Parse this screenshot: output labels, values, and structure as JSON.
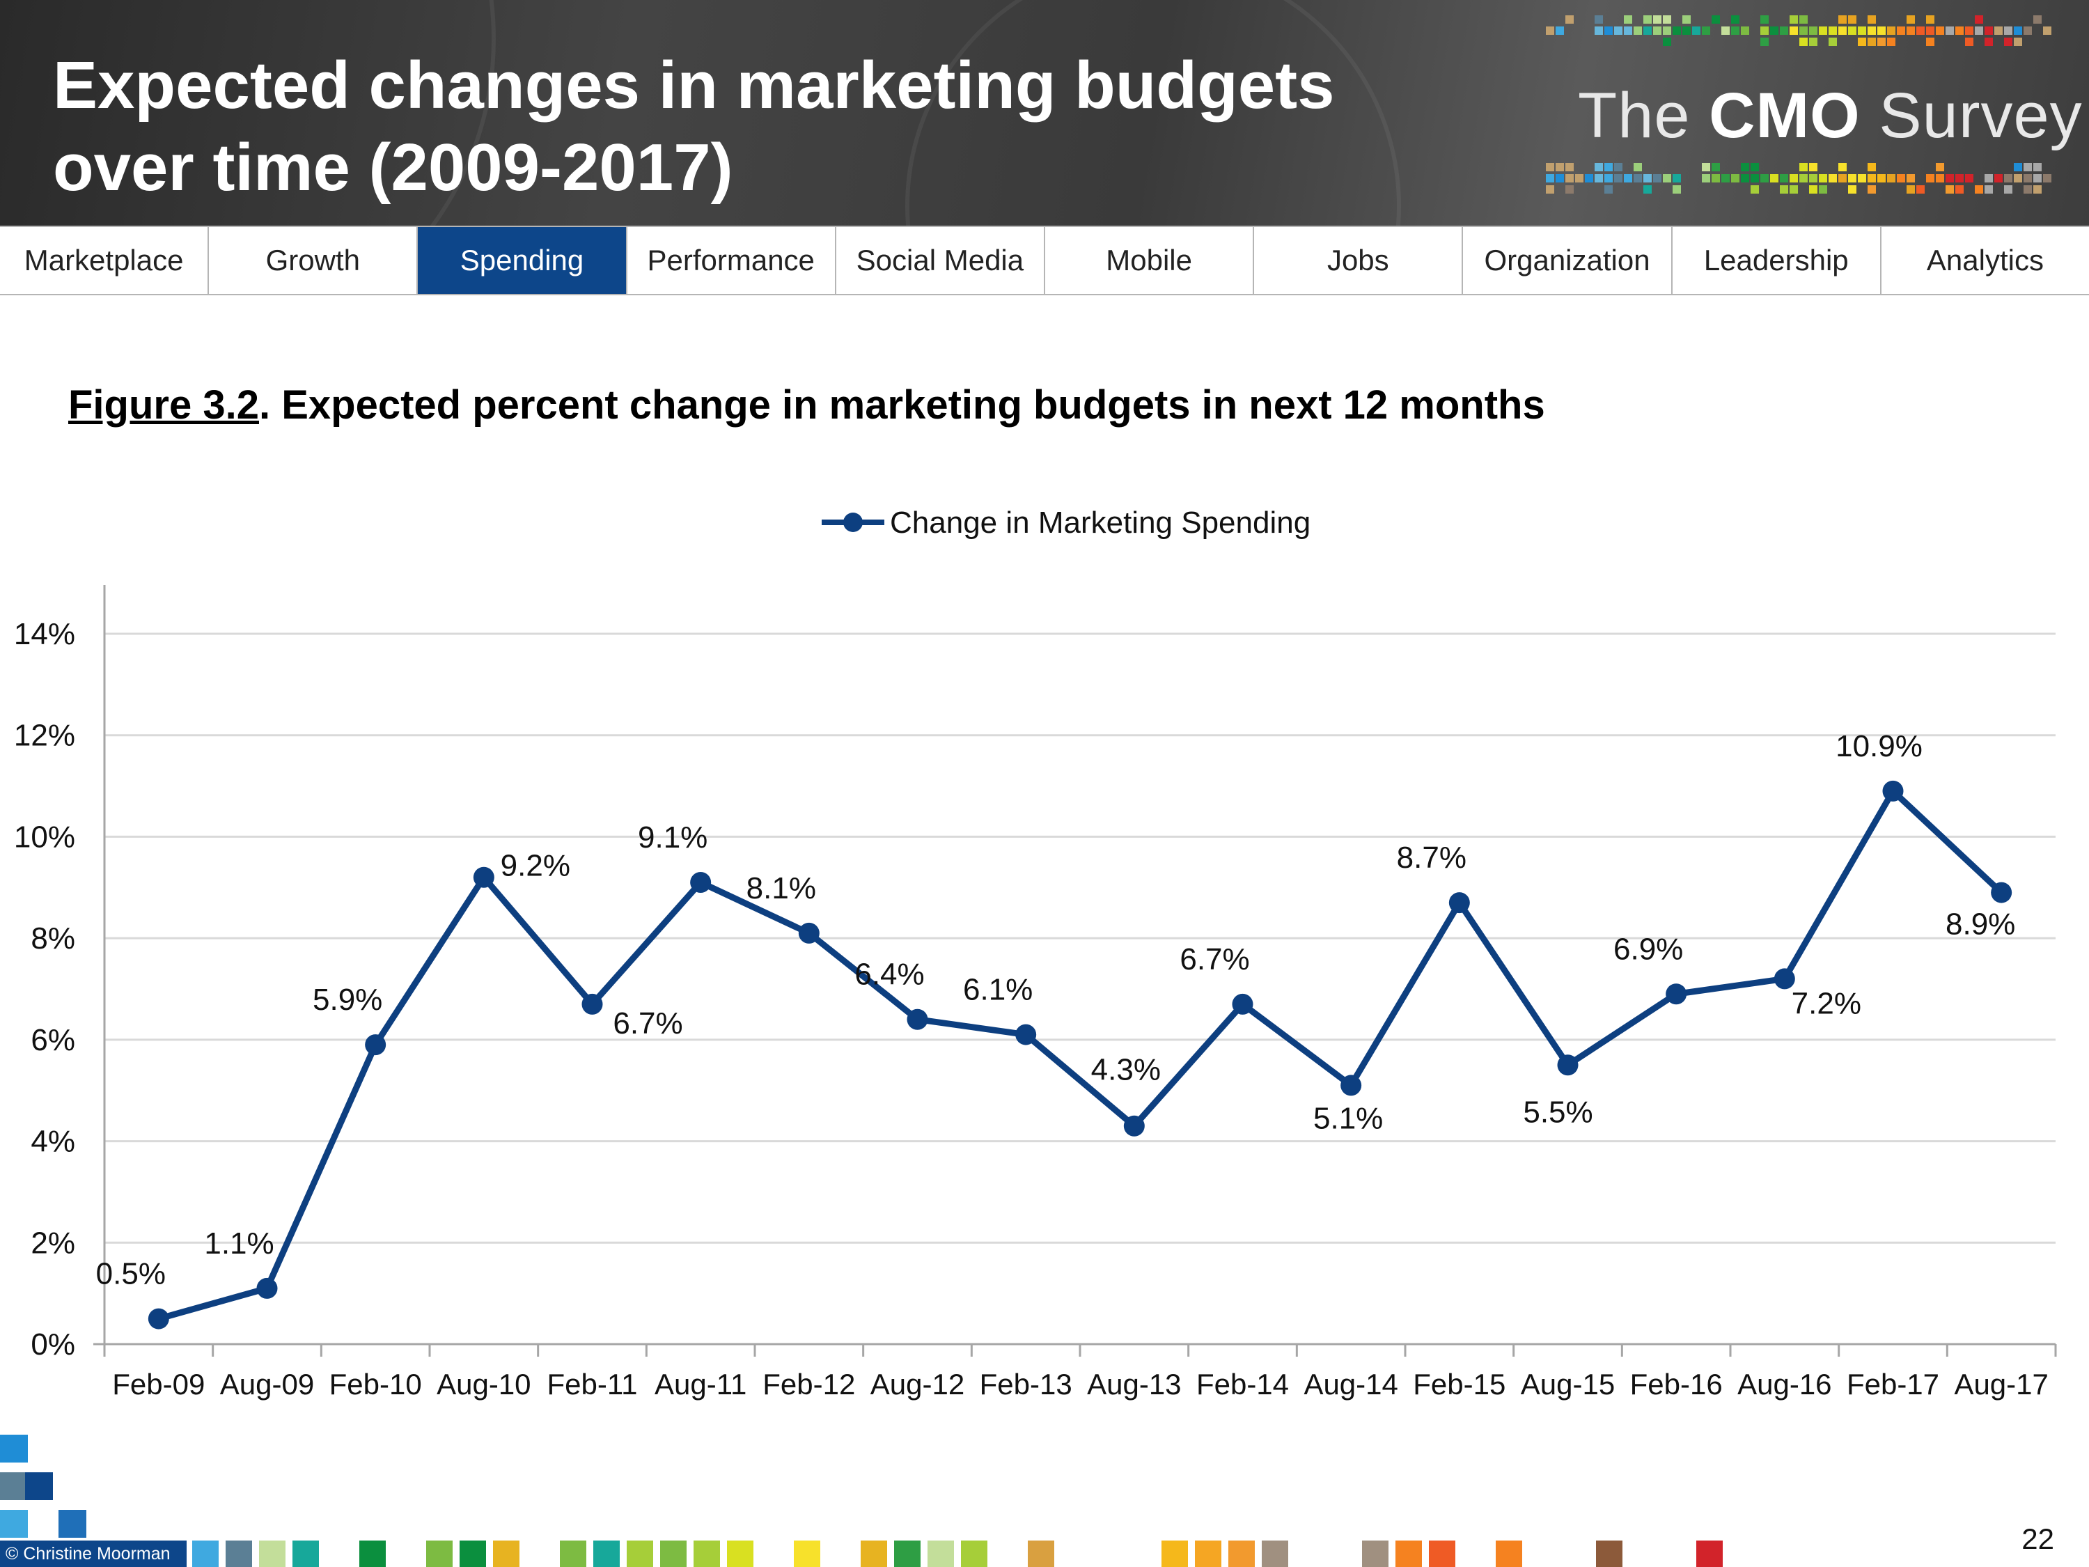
{
  "header": {
    "title_lines": [
      "Expected changes in marketing budgets",
      "over time (2009-2017)"
    ],
    "logo": {
      "prefix": "The ",
      "brand": "CMO",
      "suffix": " Survey"
    }
  },
  "nav": {
    "tabs": [
      {
        "label": "Marketplace"
      },
      {
        "label": "Growth"
      },
      {
        "label": "Spending",
        "active": true
      },
      {
        "label": "Performance"
      },
      {
        "label": "Social Media"
      },
      {
        "label": "Mobile"
      },
      {
        "label": "Jobs"
      },
      {
        "label": "Organization"
      },
      {
        "label": "Leadership"
      },
      {
        "label": "Analytics"
      }
    ],
    "active_color": "#0d468a"
  },
  "figure": {
    "label": "Figure 3.2",
    "title": ".  Expected percent change in marketing budgets in next 12 months"
  },
  "chart_data": {
    "type": "line",
    "title": "",
    "xlabel": "",
    "ylabel": "",
    "categories": [
      "Feb-09",
      "Aug-09",
      "Feb-10",
      "Aug-10",
      "Feb-11",
      "Aug-11",
      "Feb-12",
      "Aug-12",
      "Feb-13",
      "Aug-13",
      "Feb-14",
      "Aug-14",
      "Feb-15",
      "Aug-15",
      "Feb-16",
      "Aug-16",
      "Feb-17",
      "Aug-17"
    ],
    "series": [
      {
        "name": "Change in Marketing Spending",
        "color": "#0d3f80",
        "values": [
          0.5,
          1.1,
          5.9,
          9.2,
          6.7,
          9.1,
          8.1,
          6.4,
          6.1,
          4.3,
          6.7,
          5.1,
          8.7,
          5.5,
          6.9,
          7.2,
          10.9,
          8.9
        ],
        "data_labels": [
          "0.5%",
          "1.1%",
          "5.9%",
          "9.2%",
          "6.7%",
          "9.1%",
          "8.1%",
          "6.4%",
          "6.1%",
          "4.3%",
          "6.7%",
          "5.1%",
          "8.7%",
          "5.5%",
          "6.9%",
          "7.2%",
          "10.9%",
          "8.9%"
        ]
      }
    ],
    "label_positions": [
      "above",
      "above",
      "above",
      "right",
      "below",
      "above",
      "above",
      "above",
      "above",
      "above",
      "above",
      "below",
      "above",
      "below",
      "above",
      "below",
      "above",
      "below"
    ],
    "ylim": [
      0,
      14
    ],
    "yticks": [
      0,
      2,
      4,
      6,
      8,
      10,
      12,
      14
    ],
    "ytick_labels": [
      "0%",
      "2%",
      "4%",
      "6%",
      "8%",
      "10%",
      "12%",
      "14%"
    ],
    "grid": true,
    "legend": "top-center"
  },
  "footer": {
    "copyright": "© Christine Moorman",
    "page_number": "22"
  }
}
